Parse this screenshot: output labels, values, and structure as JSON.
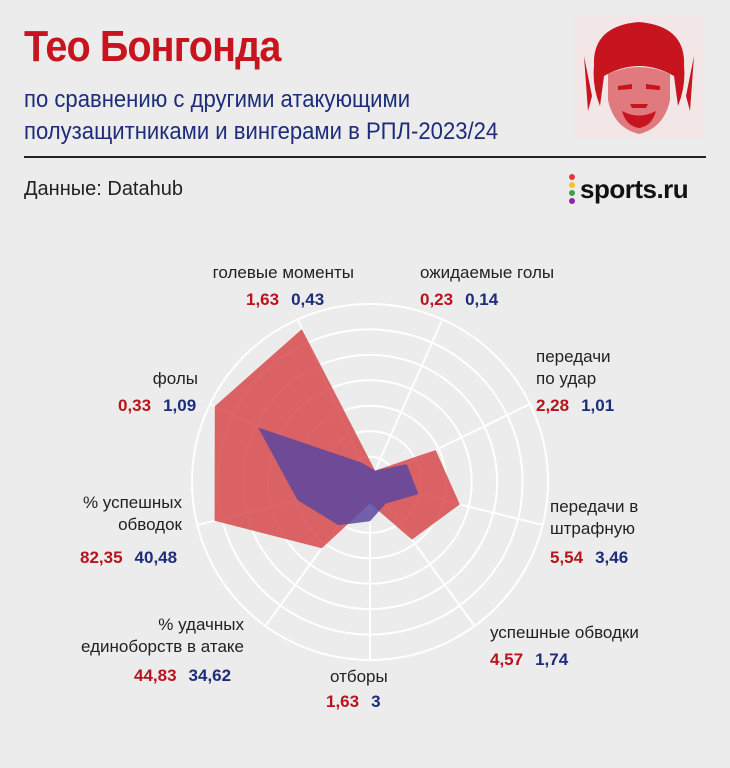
{
  "header": {
    "title": "Тео Бонгонда",
    "subtitle": "по сравнению с другими атакующими полузащитниками и вингерами в РПЛ-2023/24",
    "source": "Данные: Datahub",
    "logo_text": "sports.ru",
    "logo_icon": "sports-ru-dots-logo"
  },
  "colors": {
    "player": "#c8141e",
    "others": "#1d2d7a",
    "player_fill": "#d84a4c",
    "others_fill": "#5a46a0"
  },
  "chart_data": {
    "type": "radar",
    "title": "Тео Бонгонда",
    "series": [
      {
        "name": "Тео Бонгонда",
        "color": "#c8141e",
        "values": [
          1.63,
          0.23,
          2.28,
          5.54,
          4.57,
          1.63,
          44.83,
          82.35,
          0.33
        ]
      },
      {
        "color": "#1d2d7a",
        "values": [
          0.43,
          0.14,
          1.01,
          3.46,
          1.74,
          3,
          34.62,
          40.48,
          1.09
        ]
      }
    ],
    "axes": [
      {
        "label": "голевые моменты",
        "v1": "1,63",
        "v2": "0,43"
      },
      {
        "label": "ожидаемые голы",
        "v1": "0,23",
        "v2": "0,14"
      },
      {
        "label": "передачи по удар",
        "v1": "2,28",
        "v2": "1,01"
      },
      {
        "label": "передачи в штрафную",
        "v1": "5,54",
        "v2": "3,46"
      },
      {
        "label": "успешные обводки",
        "v1": "4,57",
        "v2": "1,74"
      },
      {
        "label": "отборы",
        "v1": "1,63",
        "v2": "3"
      },
      {
        "label": "% удачных единоборств в атаке",
        "v1": "44,83",
        "v2": "34,62"
      },
      {
        "label": "% успешных обводок",
        "v1": "82,35",
        "v2": "40,48"
      },
      {
        "label": "фолы",
        "v1": "0,33",
        "v2": "1,09"
      }
    ],
    "normalized_player": [
      0.94,
      0.07,
      0.41,
      0.52,
      0.4,
      0.12,
      0.46,
      0.9,
      0.97
    ],
    "normalized_others": [
      0.12,
      0.07,
      0.23,
      0.28,
      0.15,
      0.22,
      0.3,
      0.42,
      0.7
    ],
    "grid": true,
    "rings": 7
  }
}
